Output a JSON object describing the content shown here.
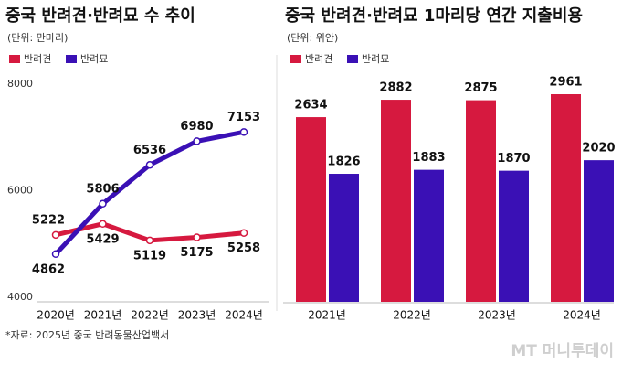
{
  "chart_data": [
    {
      "type": "line",
      "title": "중국 반려견·반려묘 수 추이",
      "subtitle": "(단위: 만마리)",
      "categories": [
        "2020년",
        "2021년",
        "2022년",
        "2023년",
        "2024년"
      ],
      "series": [
        {
          "name": "반려견",
          "color": "#d6193f",
          "values": [
            5222,
            5429,
            5119,
            5175,
            5258
          ]
        },
        {
          "name": "반려묘",
          "color": "#3a10b5",
          "values": [
            4862,
            5806,
            6536,
            6980,
            7153
          ]
        }
      ],
      "ylim": [
        4000,
        8000
      ],
      "yticks": [
        4000,
        6000,
        8000
      ],
      "grid": false
    },
    {
      "type": "bar",
      "title": "중국 반려견·반려묘 1마리당 연간 지출비용",
      "subtitle": "(단위: 위안)",
      "categories": [
        "2021년",
        "2022년",
        "2023년",
        "2024년"
      ],
      "series": [
        {
          "name": "반려견",
          "color": "#d6193f",
          "values": [
            2634,
            2882,
            2875,
            2961
          ]
        },
        {
          "name": "반려묘",
          "color": "#3a10b5",
          "values": [
            1826,
            1883,
            1870,
            2020
          ]
        }
      ]
    }
  ],
  "source": "*자료: 2025년 중국 반려동물산업백서",
  "logo": "MT 머니투데이"
}
